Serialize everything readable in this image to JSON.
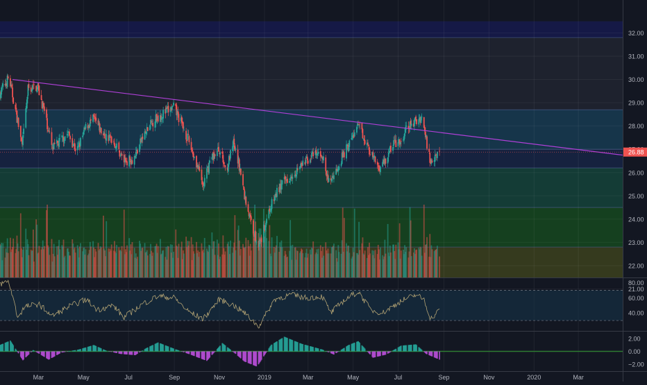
{
  "colors": {
    "background": "#131722",
    "grid": "#242a38",
    "up": "#26a69a",
    "down": "#ef5350",
    "trendline": "#b040d8",
    "rsi": "#b3a374",
    "price_tag": "#ef5350",
    "axis_text": "#b2b5be",
    "macd_up": "#26a69a",
    "macd_down": "#b84fd8",
    "zone_blue": "#1a2c58",
    "zone_steel": "#16354a",
    "zone_teal": "#143c36",
    "zone_green": "#15401f",
    "zone_olive": "#353a1e",
    "zone_top": "#161a4a"
  },
  "price_tag": "26.88",
  "chart_data": [
    {
      "type": "candlestick",
      "pane": "price",
      "ylim": [
        21.0,
        32.5
      ],
      "y_ticks": [
        "32.00",
        "31.00",
        "30.00",
        "29.00",
        "28.00",
        "27.00",
        "26.00",
        "25.00",
        "24.00",
        "23.00",
        "22.00",
        "21.00"
      ],
      "last_price": 26.88,
      "zone_levels": [
        31.8,
        28.7,
        27.0,
        26.2,
        24.5,
        22.8
      ],
      "trendline": [
        {
          "x": "2018-01-25",
          "y": 30.0
        },
        {
          "x": "2020-04-30",
          "y": 26.75
        }
      ],
      "path_points": [
        [
          "2018-01-08",
          29.4
        ],
        [
          "2018-01-20",
          30.1
        ],
        [
          "2018-02-01",
          28.2
        ],
        [
          "2018-02-07",
          27.1
        ],
        [
          "2018-02-15",
          29.6
        ],
        [
          "2018-02-28",
          29.7
        ],
        [
          "2018-03-10",
          28.5
        ],
        [
          "2018-03-20",
          27.0
        ],
        [
          "2018-04-01",
          27.4
        ],
        [
          "2018-04-10",
          27.7
        ],
        [
          "2018-04-22",
          26.9
        ],
        [
          "2018-05-05",
          28.0
        ],
        [
          "2018-05-15",
          28.3
        ],
        [
          "2018-05-28",
          27.6
        ],
        [
          "2018-06-10",
          27.4
        ],
        [
          "2018-06-25",
          26.5
        ],
        [
          "2018-07-08",
          26.6
        ],
        [
          "2018-07-20",
          27.5
        ],
        [
          "2018-08-05",
          28.3
        ],
        [
          "2018-08-20",
          28.6
        ],
        [
          "2018-09-01",
          28.8
        ],
        [
          "2018-09-08",
          28.3
        ],
        [
          "2018-09-20",
          27.4
        ],
        [
          "2018-10-01",
          26.4
        ],
        [
          "2018-10-10",
          25.4
        ],
        [
          "2018-10-20",
          26.6
        ],
        [
          "2018-11-01",
          27.0
        ],
        [
          "2018-11-10",
          26.1
        ],
        [
          "2018-11-20",
          27.2
        ],
        [
          "2018-11-28",
          26.3
        ],
        [
          "2018-12-05",
          25.0
        ],
        [
          "2018-12-12",
          24.1
        ],
        [
          "2018-12-20",
          23.2
        ],
        [
          "2018-12-26",
          22.9
        ],
        [
          "2019-01-05",
          24.2
        ],
        [
          "2019-01-20",
          25.3
        ],
        [
          "2019-02-05",
          25.9
        ],
        [
          "2019-02-20",
          26.3
        ],
        [
          "2019-03-05",
          26.7
        ],
        [
          "2019-03-20",
          26.8
        ],
        [
          "2019-03-28",
          25.6
        ],
        [
          "2019-04-05",
          25.9
        ],
        [
          "2019-04-15",
          26.6
        ],
        [
          "2019-04-25",
          27.2
        ],
        [
          "2019-05-08",
          28.0
        ],
        [
          "2019-05-15",
          27.6
        ],
        [
          "2019-05-25",
          26.8
        ],
        [
          "2019-06-05",
          26.2
        ],
        [
          "2019-06-15",
          26.6
        ],
        [
          "2019-06-25",
          27.3
        ],
        [
          "2019-07-05",
          27.2
        ],
        [
          "2019-07-12",
          27.9
        ],
        [
          "2019-07-25",
          28.2
        ],
        [
          "2019-08-02",
          28.4
        ],
        [
          "2019-08-08",
          27.4
        ],
        [
          "2019-08-14",
          26.4
        ],
        [
          "2019-08-20",
          26.8
        ],
        [
          "2019-08-26",
          26.88
        ]
      ]
    },
    {
      "type": "line",
      "pane": "rsi",
      "name": "",
      "ylim": [
        20,
        85
      ],
      "y_ticks": [
        "80.00",
        "60.00",
        "40.00"
      ],
      "bands": [
        70,
        30
      ],
      "anchor_points": [
        [
          "2018-01-08",
          78
        ],
        [
          "2018-01-20",
          82
        ],
        [
          "2018-02-01",
          34
        ],
        [
          "2018-02-10",
          48
        ],
        [
          "2018-03-01",
          52
        ],
        [
          "2018-03-20",
          36
        ],
        [
          "2018-04-10",
          48
        ],
        [
          "2018-05-05",
          58
        ],
        [
          "2018-05-20",
          44
        ],
        [
          "2018-06-10",
          50
        ],
        [
          "2018-06-25",
          34
        ],
        [
          "2018-07-20",
          52
        ],
        [
          "2018-08-10",
          62
        ],
        [
          "2018-09-01",
          60
        ],
        [
          "2018-09-20",
          42
        ],
        [
          "2018-10-10",
          32
        ],
        [
          "2018-11-01",
          58
        ],
        [
          "2018-11-20",
          50
        ],
        [
          "2018-12-05",
          40
        ],
        [
          "2018-12-24",
          22
        ],
        [
          "2019-01-15",
          58
        ],
        [
          "2019-02-05",
          64
        ],
        [
          "2019-02-25",
          60
        ],
        [
          "2019-03-20",
          62
        ],
        [
          "2019-04-01",
          40
        ],
        [
          "2019-04-20",
          58
        ],
        [
          "2019-05-08",
          68
        ],
        [
          "2019-05-25",
          44
        ],
        [
          "2019-06-10",
          40
        ],
        [
          "2019-07-05",
          56
        ],
        [
          "2019-07-25",
          64
        ],
        [
          "2019-08-05",
          58
        ],
        [
          "2019-08-14",
          32
        ],
        [
          "2019-08-26",
          44
        ]
      ]
    },
    {
      "type": "bar",
      "pane": "macd",
      "ylim": [
        -3.0,
        3.0
      ],
      "y_ticks": [
        "2.00",
        "0.00",
        "-2.00"
      ],
      "anchor_points": [
        [
          "2018-01-08",
          1.0
        ],
        [
          "2018-01-22",
          1.7
        ],
        [
          "2018-02-08",
          -1.4
        ],
        [
          "2018-02-22",
          0.2
        ],
        [
          "2018-03-15",
          -1.3
        ],
        [
          "2018-04-01",
          -0.2
        ],
        [
          "2018-04-25",
          0.3
        ],
        [
          "2018-05-15",
          1.0
        ],
        [
          "2018-06-01",
          0.1
        ],
        [
          "2018-06-20",
          -0.4
        ],
        [
          "2018-07-10",
          -0.6
        ],
        [
          "2018-07-25",
          0.5
        ],
        [
          "2018-08-10",
          1.4
        ],
        [
          "2018-09-01",
          0.4
        ],
        [
          "2018-09-25",
          -0.6
        ],
        [
          "2018-10-15",
          -1.5
        ],
        [
          "2018-11-05",
          1.3
        ],
        [
          "2018-11-20",
          -0.1
        ],
        [
          "2018-12-05",
          -1.6
        ],
        [
          "2018-12-22",
          -2.4
        ],
        [
          "2019-01-10",
          1.0
        ],
        [
          "2019-01-28",
          2.3
        ],
        [
          "2019-02-20",
          1.2
        ],
        [
          "2019-03-20",
          0.3
        ],
        [
          "2019-04-05",
          -0.5
        ],
        [
          "2019-04-25",
          1.0
        ],
        [
          "2019-05-08",
          1.6
        ],
        [
          "2019-05-28",
          -1.0
        ],
        [
          "2019-06-15",
          -0.5
        ],
        [
          "2019-07-05",
          0.9
        ],
        [
          "2019-07-25",
          1.1
        ],
        [
          "2019-08-08",
          -0.4
        ],
        [
          "2019-08-26",
          -1.3
        ]
      ]
    },
    {
      "type": "bar",
      "pane": "volume",
      "note_scale": "relative"
    }
  ],
  "x_axis": {
    "ticks": [
      {
        "label": "Mar",
        "date": "2018-03-01"
      },
      {
        "label": "May",
        "date": "2018-05-01"
      },
      {
        "label": "Jul",
        "date": "2018-07-01"
      },
      {
        "label": "Sep",
        "date": "2018-09-01"
      },
      {
        "label": "Nov",
        "date": "2018-11-01"
      },
      {
        "label": "2019",
        "date": "2019-01-01"
      },
      {
        "label": "Mar",
        "date": "2019-03-01"
      },
      {
        "label": "May",
        "date": "2019-05-01"
      },
      {
        "label": "Jul",
        "date": "2019-07-01"
      },
      {
        "label": "Sep",
        "date": "2019-09-01"
      },
      {
        "label": "Nov",
        "date": "2019-11-01"
      },
      {
        "label": "2020",
        "date": "2020-01-01"
      },
      {
        "label": "Mar",
        "date": "2020-03-01"
      }
    ]
  }
}
